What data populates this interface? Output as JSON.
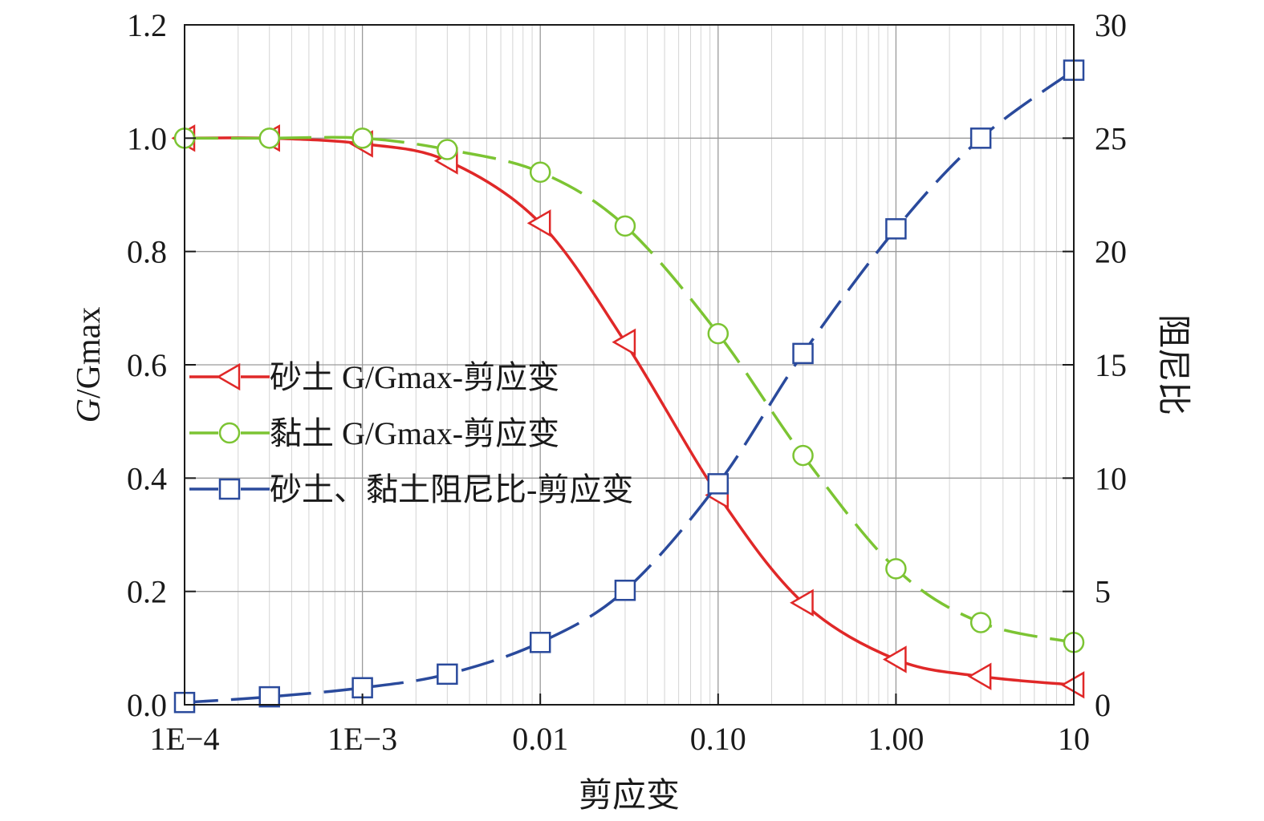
{
  "chart_data": {
    "type": "line",
    "x_scale": "log",
    "xlim": [
      0.0001,
      10
    ],
    "x_ticks": [
      0.0001,
      0.001,
      0.01,
      0.1,
      1,
      10
    ],
    "x_tick_labels": [
      "1E−4",
      "1E−3",
      "0.01",
      "0.10",
      "1.00",
      "10"
    ],
    "xlabel": "剪应变",
    "ylabel_italic_part": "G",
    "ylabel_rest": "/Gmax",
    "ylim": [
      0,
      1.2
    ],
    "y_ticks": [
      0,
      0.2,
      0.4,
      0.6,
      0.8,
      1.0,
      1.2
    ],
    "y_tick_labels": [
      "0.0",
      "0.2",
      "0.4",
      "0.6",
      "0.8",
      "1.0",
      "1.2"
    ],
    "y2label": "阻尼比",
    "y2lim": [
      0,
      30
    ],
    "y2_ticks": [
      0,
      5,
      10,
      15,
      20,
      25,
      30
    ],
    "y2_tick_labels": [
      "0",
      "5",
      "10",
      "15",
      "20",
      "25",
      "30"
    ],
    "grid": true,
    "legend_position": "center-left",
    "series": [
      {
        "name": "砂土  G/Gmax-剪应变",
        "axis": "left",
        "color": "#e02828",
        "marker": "triangle-left",
        "line": "solid",
        "x": [
          0.0001,
          0.0003,
          0.001,
          0.003,
          0.01,
          0.03,
          0.1,
          0.3,
          1,
          3,
          10
        ],
        "y": [
          1.0,
          1.0,
          0.99,
          0.96,
          0.85,
          0.64,
          0.37,
          0.18,
          0.08,
          0.05,
          0.035
        ]
      },
      {
        "name": "黏土  G/Gmax-剪应变",
        "axis": "left",
        "color": "#7cc433",
        "marker": "circle",
        "line": "dashed",
        "x": [
          0.0001,
          0.0003,
          0.001,
          0.003,
          0.01,
          0.03,
          0.1,
          0.3,
          1,
          3,
          10
        ],
        "y": [
          1.0,
          1.0,
          1.0,
          0.98,
          0.94,
          0.845,
          0.655,
          0.44,
          0.24,
          0.145,
          0.11
        ]
      },
      {
        "name": "砂土、黏土阻尼比-剪应变",
        "axis": "right",
        "color": "#2a4a9c",
        "marker": "square",
        "line": "dashed",
        "x": [
          0.0001,
          0.0003,
          0.001,
          0.003,
          0.01,
          0.03,
          0.1,
          0.3,
          1,
          3,
          10
        ],
        "y": [
          0.1,
          0.35,
          0.75,
          1.35,
          2.75,
          5.05,
          9.75,
          15.5,
          21.0,
          25.0,
          28.0
        ]
      }
    ]
  }
}
